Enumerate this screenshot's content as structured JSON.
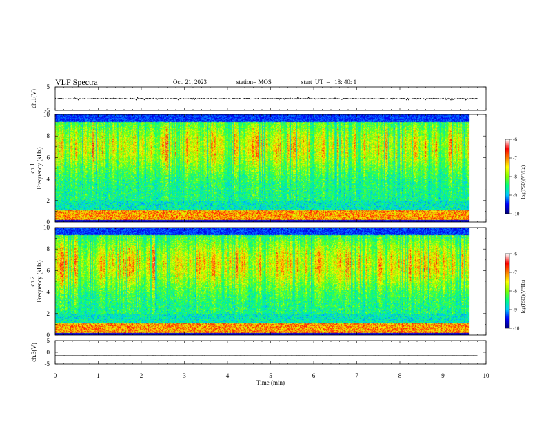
{
  "header": {
    "title": "VLF Spectra",
    "date": "Oct. 21, 2023",
    "station": "station= MOS",
    "start": "start  UT  =   18: 40: 1"
  },
  "chart_data": [
    {
      "type": "line",
      "name": "ch1-waveform",
      "ylabel": "ch.1(V)",
      "ylim": [
        -5,
        5
      ],
      "y_ticks": [
        "5",
        "-5"
      ],
      "x_range": [
        0,
        10
      ],
      "baseline": 0,
      "noise_amplitude": 0.4,
      "color": "#000000"
    },
    {
      "type": "heatmap",
      "name": "ch1-spectrogram",
      "ylabel": "ch.1\nFrequency (kHz)",
      "ylim": [
        0,
        10
      ],
      "y_ticks": [
        "0",
        "2",
        "4",
        "6",
        "8",
        "10"
      ],
      "x_range": [
        0,
        10
      ],
      "data_end_min": 9.8,
      "colorbar": {
        "label": "log(PSD)(V²/Hz)",
        "range": [
          -10,
          -6
        ],
        "ticks": [
          "-6",
          "-7",
          "-8",
          "-9",
          "-10"
        ],
        "colors": [
          "#000080",
          "#0000ff",
          "#00c8ff",
          "#00ff80",
          "#80ff00",
          "#ffff00",
          "#ff8000",
          "#ff0000",
          "#ffffff"
        ]
      }
    },
    {
      "type": "heatmap",
      "name": "ch2-spectrogram",
      "ylabel": "ch.2\nFrequency (kHz)",
      "ylim": [
        0,
        10
      ],
      "y_ticks": [
        "0",
        "2",
        "4",
        "6",
        "8",
        "10"
      ],
      "x_range": [
        0,
        10
      ],
      "data_end_min": 9.8,
      "colorbar": {
        "label": "log(PSD)(V²/Hz)",
        "range": [
          -10,
          -6
        ],
        "ticks": [
          "-6",
          "-7",
          "-8",
          "-9",
          "-10"
        ],
        "colors": [
          "#000080",
          "#0000ff",
          "#00c8ff",
          "#00ff80",
          "#80ff00",
          "#ffff00",
          "#ff8000",
          "#ff0000",
          "#ffffff"
        ]
      }
    },
    {
      "type": "line",
      "name": "ch3-waveform",
      "ylabel": "ch.3(V)",
      "ylim": [
        -5,
        5
      ],
      "y_ticks": [
        "5",
        "0",
        "-5"
      ],
      "x_range": [
        0,
        10
      ],
      "baseline": -1.5,
      "noise_amplitude": 0.05,
      "color": "#000000"
    }
  ],
  "x_axis": {
    "label": "Time  (min)",
    "ticks": [
      "0",
      "1",
      "2",
      "3",
      "4",
      "5",
      "6",
      "7",
      "8",
      "9",
      "10"
    ]
  }
}
